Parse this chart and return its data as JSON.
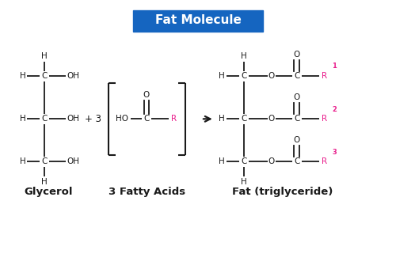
{
  "title": "Fat Molecule",
  "title_bg": "#1565C0",
  "title_color": "#ffffff",
  "label_glycerol": "Glycerol",
  "label_fatty": "3 Fatty Acids",
  "label_fat": "Fat (triglyceride)",
  "pink_color": "#E91E8C",
  "black_color": "#1a1a1a",
  "bg_color": "#ffffff",
  "font_size": 7.5,
  "bold_label_size": 9.5
}
